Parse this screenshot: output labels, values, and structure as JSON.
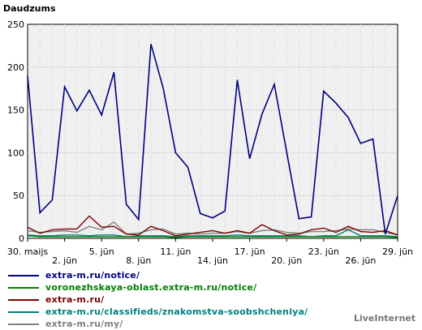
{
  "chart_data": {
    "type": "line",
    "ylabel": "Daudzums",
    "ylim": [
      0,
      250
    ],
    "yticks": [
      0,
      50,
      100,
      150,
      200,
      250
    ],
    "x_tick_labels": [
      {
        "index": 0,
        "label": "30. maijs"
      },
      {
        "index": 3,
        "label": "2. jūn"
      },
      {
        "index": 6,
        "label": "5. jūn"
      },
      {
        "index": 9,
        "label": "8. jūn"
      },
      {
        "index": 12,
        "label": "11. jūn"
      },
      {
        "index": 15,
        "label": "14. jūn"
      },
      {
        "index": 18,
        "label": "17. jūn"
      },
      {
        "index": 21,
        "label": "20. jūn"
      },
      {
        "index": 24,
        "label": "23. jūn"
      },
      {
        "index": 27,
        "label": "26. jūn"
      },
      {
        "index": 30,
        "label": "29. jūn"
      }
    ],
    "grid": true,
    "series": [
      {
        "name": "extra-m.ru/notice/",
        "color": "#000080",
        "values": [
          190,
          30,
          45,
          177,
          149,
          173,
          144,
          194,
          40,
          22,
          227,
          175,
          100,
          83,
          29,
          24,
          32,
          185,
          93,
          145,
          180,
          101,
          23,
          25,
          172,
          158,
          141,
          111,
          116,
          5,
          50
        ]
      },
      {
        "name": "voronezhskaya-oblast.extra-m.ru/notice/",
        "color": "#008000",
        "values": [
          3,
          2,
          2,
          2,
          2,
          2,
          2,
          2,
          2,
          2,
          2,
          2,
          1,
          2,
          2,
          2,
          2,
          2,
          2,
          2,
          2,
          2,
          2,
          2,
          2,
          2,
          2,
          2,
          2,
          2,
          1
        ]
      },
      {
        "name": "extra-m.ru/",
        "color": "#800000",
        "values": [
          13,
          6,
          10,
          11,
          11,
          26,
          13,
          14,
          5,
          4,
          14,
          9,
          3,
          5,
          7,
          9,
          6,
          9,
          6,
          16,
          9,
          4,
          5,
          10,
          12,
          7,
          14,
          8,
          7,
          9,
          4
        ]
      },
      {
        "name": "extra-m.ru/classifieds/znakomstva-soobshcheniya/",
        "color": "#008080",
        "values": [
          4,
          3,
          3,
          4,
          4,
          3,
          4,
          4,
          2,
          3,
          3,
          3,
          2,
          3,
          3,
          3,
          3,
          4,
          3,
          3,
          3,
          3,
          3,
          2,
          3,
          3,
          10,
          3,
          3,
          3,
          2
        ]
      },
      {
        "name": "extra-m.ru/my/",
        "color": "#808080",
        "values": [
          9,
          7,
          8,
          9,
          7,
          14,
          10,
          19,
          5,
          6,
          10,
          11,
          5,
          6,
          5,
          6,
          6,
          8,
          6,
          9,
          10,
          7,
          6,
          8,
          8,
          9,
          11,
          10,
          10,
          7,
          4
        ]
      }
    ]
  },
  "brand": "LiveInternet"
}
